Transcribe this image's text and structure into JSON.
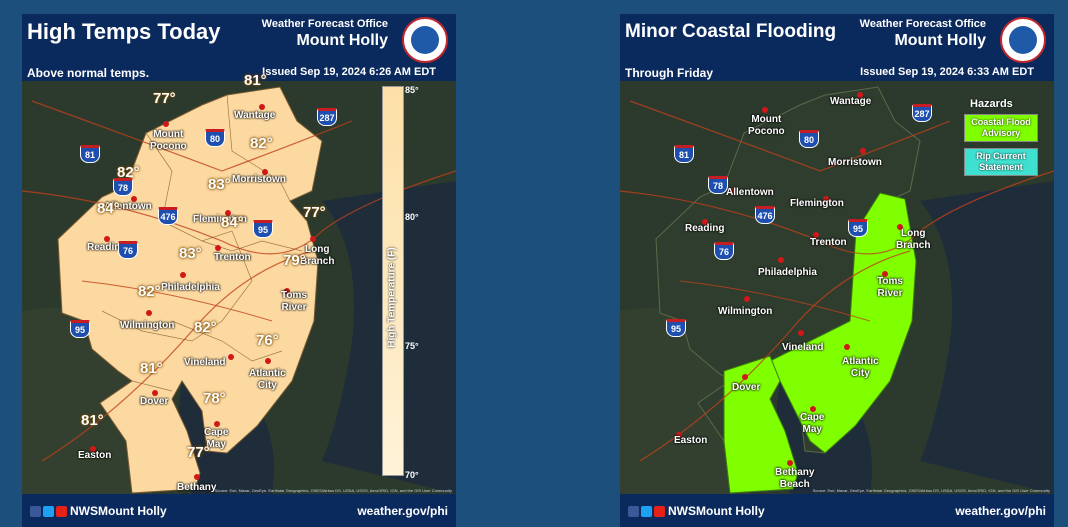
{
  "left": {
    "title": "High Temps Today",
    "office_line1": "Weather Forecast Office",
    "office_line2": "Mount Holly",
    "subtitle": "Above normal temps.",
    "issued": "Issued Sep 19, 2024 6:26 AM EDT",
    "cities": {
      "mount_pocono": "Mount\nPocono",
      "wantage": "Wantage",
      "morristown": "Morristown",
      "allentown": "Allentown",
      "flemington": "Flemington",
      "reading": "Reading",
      "trenton": "Trenton",
      "long_branch": "Long\nBranch",
      "philadelphia": "Philadelphia",
      "toms_river": "Toms\nRiver",
      "wilmington": "Wilmington",
      "vineland": "Vineland",
      "atlantic_city": "Atlantic\nCity",
      "dover": "Dover",
      "cape_may": "Cape\nMay",
      "easton": "Easton",
      "bethany_beach": "Bethany\nBeach"
    },
    "temps": {
      "wantage": "81°",
      "mount_pocono": "77°",
      "morristown": "82°",
      "allentown": "82°",
      "flemington": "83°",
      "reading": "84°",
      "trenton": "84°",
      "long_branch": "77°",
      "philadelphia": "83°",
      "toms_river": "79°",
      "wilmington": "82°",
      "vineland": "82°",
      "atlantic_city": "76°",
      "dover": "81°",
      "cape_may": "78°",
      "easton": "81°",
      "bethany_beach": "77°"
    },
    "colorbar": {
      "label": "High Temperature (F)",
      "ticks": [
        "85°",
        "80°",
        "75°",
        "70°"
      ]
    }
  },
  "right": {
    "title": "Minor Coastal Flooding",
    "office_line1": "Weather Forecast Office",
    "office_line2": "Mount Holly",
    "subtitle": "Through Friday",
    "issued": "Issued Sep 19, 2024 6:33 AM EDT",
    "cities": {
      "wantage": "Wantage",
      "mount_pocono": "Mount\nPocono",
      "morristown": "Morristown",
      "allentown": "Allentown",
      "flemington": "Flemington",
      "reading": "Reading",
      "trenton": "Trenton",
      "long_branch": "Long\nBranch",
      "philadelphia": "Philadelphia",
      "toms_river": "Toms\nRiver",
      "wilmington": "Wilmington",
      "vineland": "Vineland",
      "atlantic_city": "Atlantic\nCity",
      "dover": "Dover",
      "cape_may": "Cape\nMay",
      "easton": "Easton",
      "bethany_beach": "Bethany\nBeach"
    },
    "legend": {
      "title": "Hazards",
      "items": [
        {
          "label": "Coastal Flood\nAdvisory",
          "color": "#7fff00"
        },
        {
          "label": "Rip Current\nStatement",
          "color": "#40e0d0"
        }
      ]
    }
  },
  "interstates": [
    "81",
    "287",
    "80",
    "78",
    "476",
    "95",
    "76"
  ],
  "footer": {
    "handle": "NWSMount Holly",
    "site": "weather.gov/phi",
    "attribution": "Source: Esri, Maxar, GeoEye, Earthstar Geographics, CNES/Airbus DS, USDA, USGS, AeroGRID, IGN, and the GIS User Community"
  },
  "colors": {
    "background": "#1d4f7c",
    "header": "#0a2a5e",
    "temp_fill": "#fcd9a0",
    "advisory": "#7fff00",
    "rip_current": "#40e0d0"
  }
}
